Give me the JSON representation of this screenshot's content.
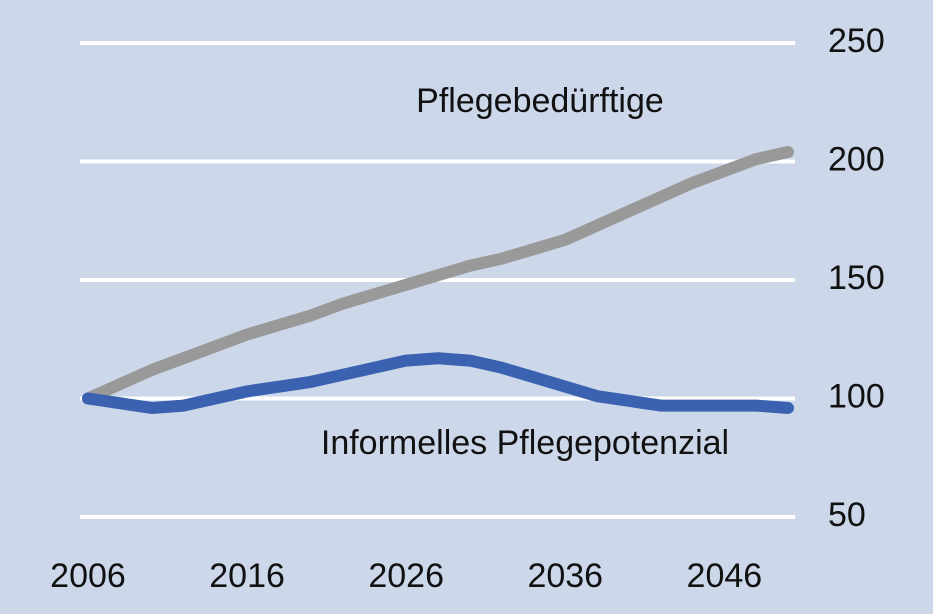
{
  "chart_data": {
    "type": "line",
    "x": [
      2006,
      2008,
      2010,
      2012,
      2014,
      2016,
      2018,
      2020,
      2022,
      2024,
      2026,
      2028,
      2030,
      2032,
      2034,
      2036,
      2038,
      2040,
      2042,
      2044,
      2046,
      2048,
      2050
    ],
    "series": [
      {
        "name": "Pflegebedürftige",
        "color": "#999999",
        "values": [
          100,
          106,
          112,
          117,
          122,
          127,
          131,
          135,
          140,
          144,
          148,
          152,
          156,
          159,
          163,
          167,
          173,
          179,
          185,
          191,
          196,
          201,
          204
        ]
      },
      {
        "name": "Informelles Pflegepotenzial",
        "color": "#3a62b0",
        "values": [
          100,
          98,
          96,
          97,
          100,
          103,
          105,
          107,
          110,
          113,
          116,
          117,
          116,
          113,
          109,
          105,
          101,
          99,
          97,
          97,
          97,
          97,
          96
        ]
      }
    ],
    "xlim": [
      2006,
      2050
    ],
    "xticks": [
      2006,
      2016,
      2026,
      2036,
      2046
    ],
    "ylim": [
      50,
      250
    ],
    "yticks": [
      50,
      100,
      150,
      200,
      250
    ],
    "grid": true
  }
}
